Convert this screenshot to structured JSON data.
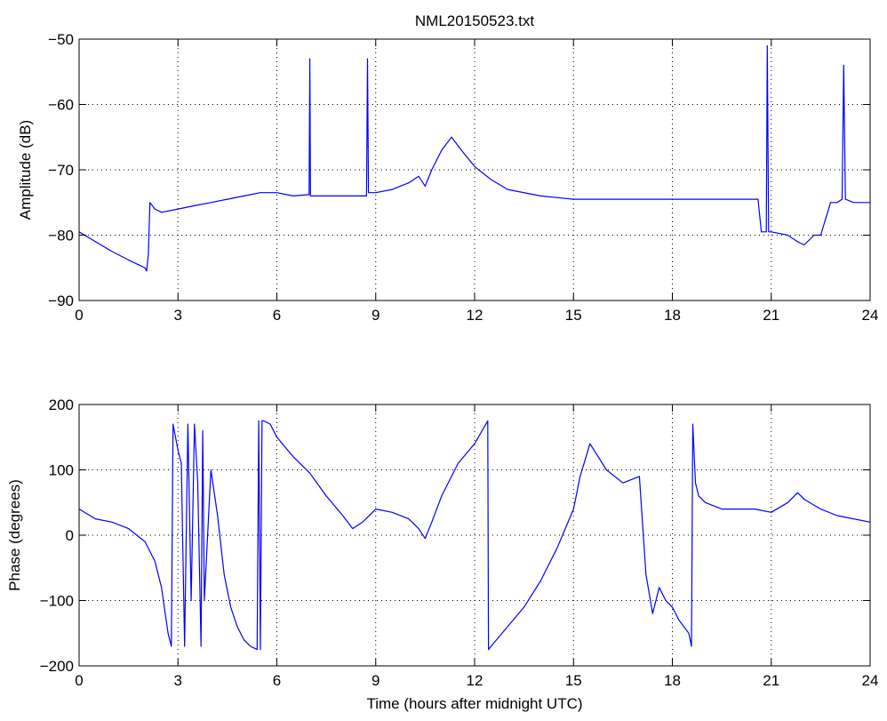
{
  "figure": {
    "title": "NML20150523.txt"
  },
  "colors": {
    "line": "#0000ff",
    "axes": "#000000",
    "grid": "#000000",
    "background": "#ffffff"
  },
  "chart_data": [
    {
      "type": "line",
      "title": "NML20150523.txt",
      "xlabel": "",
      "ylabel": "Amplitude (dB)",
      "xlim": [
        0,
        24
      ],
      "ylim": [
        -90,
        -50
      ],
      "xticks": [
        0,
        3,
        6,
        9,
        12,
        15,
        18,
        21,
        24
      ],
      "yticks": [
        -90,
        -80,
        -70,
        -60,
        -50
      ],
      "grid": true,
      "legend": "none",
      "series": [
        {
          "x": [
            0,
            0.5,
            1.0,
            1.5,
            2.0,
            2.05,
            2.1,
            2.15,
            2.3,
            2.5,
            3.0,
            3.5,
            4.0,
            4.5,
            5.0,
            5.5,
            6.0,
            6.5,
            6.98,
            7.0,
            7.02,
            7.5,
            8.0,
            8.5,
            8.72,
            8.75,
            8.78,
            9.0,
            9.5,
            10.0,
            10.3,
            10.5,
            10.7,
            11.0,
            11.3,
            11.6,
            12.0,
            12.5,
            13.0,
            14.0,
            15.0,
            16.0,
            17.0,
            18.0,
            19.0,
            20.0,
            20.6,
            20.7,
            20.85,
            20.88,
            20.92,
            21.0,
            21.5,
            21.8,
            22.0,
            22.3,
            22.5,
            22.8,
            23.0,
            23.15,
            23.2,
            23.25,
            23.5,
            24.0
          ],
          "y": [
            -79.5,
            -81.0,
            -82.5,
            -83.8,
            -85.0,
            -85.5,
            -83.0,
            -75.0,
            -76.0,
            -76.5,
            -76.0,
            -75.5,
            -75.0,
            -74.5,
            -74.0,
            -73.5,
            -73.5,
            -74.0,
            -73.8,
            -53.0,
            -74.0,
            -74.0,
            -74.0,
            -74.0,
            -74.0,
            -53.0,
            -73.5,
            -73.5,
            -73.0,
            -72.0,
            -71.0,
            -72.5,
            -70.0,
            -67.0,
            -65.0,
            -67.0,
            -69.5,
            -71.5,
            -73.0,
            -74.0,
            -74.5,
            -74.5,
            -74.5,
            -74.5,
            -74.5,
            -74.5,
            -74.5,
            -79.5,
            -79.5,
            -51.0,
            -79.5,
            -79.5,
            -80.0,
            -81.0,
            -81.5,
            -80.0,
            -80.0,
            -75.0,
            -75.0,
            -74.5,
            -54.0,
            -74.5,
            -75.0,
            -75.0
          ]
        }
      ]
    },
    {
      "type": "line",
      "title": "",
      "xlabel": "Time (hours after midnight UTC)",
      "ylabel": "Phase (degrees)",
      "xlim": [
        0,
        24
      ],
      "ylim": [
        -200,
        200
      ],
      "xticks": [
        0,
        3,
        6,
        9,
        12,
        15,
        18,
        21,
        24
      ],
      "yticks": [
        -200,
        -100,
        0,
        100,
        200
      ],
      "grid": true,
      "legend": "none",
      "series": [
        {
          "x": [
            0,
            0.5,
            1.0,
            1.5,
            2.0,
            2.3,
            2.5,
            2.7,
            2.8,
            2.85,
            3.0,
            3.1,
            3.2,
            3.3,
            3.4,
            3.5,
            3.6,
            3.7,
            3.75,
            3.8,
            4.0,
            4.2,
            4.4,
            4.6,
            4.8,
            5.0,
            5.2,
            5.4,
            5.45,
            5.5,
            5.55,
            5.6,
            5.8,
            6.0,
            6.5,
            7.0,
            7.5,
            8.0,
            8.3,
            8.6,
            9.0,
            9.5,
            10.0,
            10.3,
            10.5,
            10.7,
            11.0,
            11.5,
            12.0,
            12.4,
            12.42,
            12.5,
            13.0,
            13.5,
            14.0,
            14.5,
            15.0,
            15.2,
            15.5,
            16.0,
            16.5,
            17.0,
            17.2,
            17.4,
            17.6,
            17.8,
            18.0,
            18.2,
            18.5,
            18.58,
            18.62,
            18.7,
            18.8,
            19.0,
            19.5,
            20.0,
            20.5,
            21.0,
            21.5,
            21.8,
            22.0,
            22.5,
            23.0,
            23.5,
            24.0
          ],
          "y": [
            40,
            25,
            20,
            10,
            -10,
            -40,
            -80,
            -150,
            -170,
            170,
            130,
            110,
            -170,
            170,
            -100,
            170,
            80,
            -170,
            160,
            -100,
            100,
            30,
            -60,
            -110,
            -140,
            -160,
            -170,
            -175,
            175,
            -175,
            175,
            175,
            170,
            150,
            120,
            95,
            60,
            30,
            10,
            20,
            40,
            35,
            25,
            10,
            -5,
            20,
            60,
            110,
            140,
            175,
            -175,
            -170,
            -140,
            -110,
            -70,
            -20,
            40,
            90,
            140,
            100,
            80,
            90,
            -60,
            -120,
            -80,
            -100,
            -110,
            -130,
            -150,
            -170,
            170,
            80,
            60,
            50,
            40,
            40,
            40,
            35,
            50,
            65,
            55,
            40,
            30,
            25,
            20
          ]
        }
      ]
    }
  ]
}
